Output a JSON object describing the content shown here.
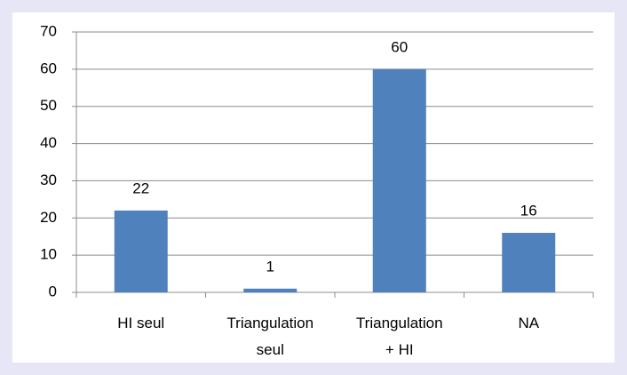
{
  "chart_data": {
    "type": "bar",
    "categories": [
      "HI seul",
      "Triangulation\nseul",
      "Triangulation\n+ HI",
      "NA"
    ],
    "values": [
      22,
      1,
      60,
      16
    ],
    "color": "#4f81bd",
    "ylim": [
      0,
      70
    ],
    "yticks": [
      0,
      10,
      20,
      30,
      40,
      50,
      60,
      70
    ],
    "grid": true
  }
}
